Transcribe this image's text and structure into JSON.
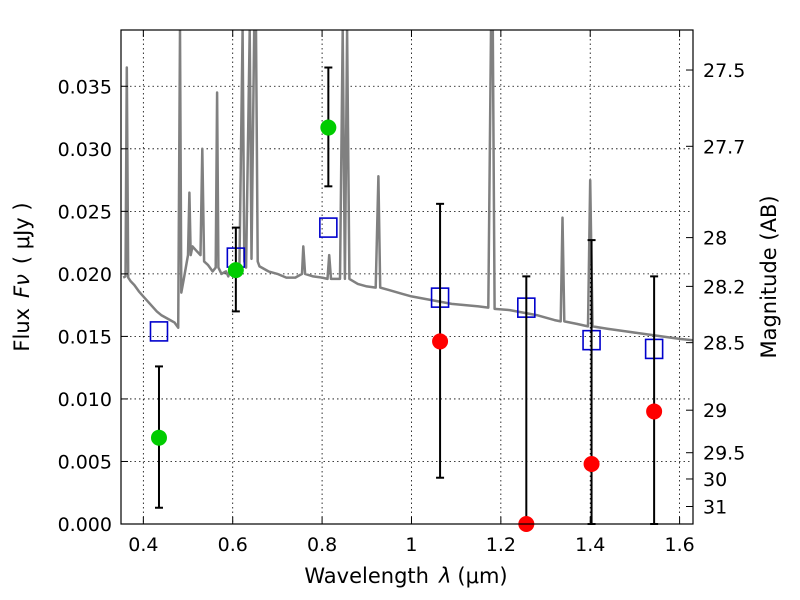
{
  "chart_data": {
    "type": "scatter",
    "title": "",
    "xlabel": "Wavelength",
    "xlabel_symbol": "λ",
    "xlabel_unit": "(μm)",
    "ylabel": "Flux",
    "ylabel_symbol": "Fν",
    "ylabel_unit": "( μJy )",
    "y2label": "Magnitude (AB)",
    "xlim": [
      0.35,
      1.63
    ],
    "ylim": [
      0.0,
      0.0395
    ],
    "grid": true,
    "x_ticks": [
      {
        "value": 0.4,
        "label": "0.4"
      },
      {
        "value": 0.6,
        "label": "0.6"
      },
      {
        "value": 0.8,
        "label": "0.8"
      },
      {
        "value": 1.0,
        "label": "1"
      },
      {
        "value": 1.2,
        "label": "1.2"
      },
      {
        "value": 1.4,
        "label": "1.4"
      },
      {
        "value": 1.6,
        "label": "1.6"
      }
    ],
    "y_ticks": [
      {
        "value": 0.0,
        "label": "0.000"
      },
      {
        "value": 0.005,
        "label": "0.005"
      },
      {
        "value": 0.01,
        "label": "0.010"
      },
      {
        "value": 0.015,
        "label": "0.015"
      },
      {
        "value": 0.02,
        "label": "0.020"
      },
      {
        "value": 0.025,
        "label": "0.025"
      },
      {
        "value": 0.03,
        "label": "0.030"
      },
      {
        "value": 0.035,
        "label": "0.035"
      }
    ],
    "y2_ticks": [
      {
        "flux": 0.0363,
        "label": "27.5"
      },
      {
        "flux": 0.0302,
        "label": "27.7"
      },
      {
        "flux": 0.0229,
        "label": "28"
      },
      {
        "flux": 0.019,
        "label": "28.2"
      },
      {
        "flux": 0.0145,
        "label": "28.5"
      },
      {
        "flux": 0.0091,
        "label": "29"
      },
      {
        "flux": 0.0057,
        "label": "29.5"
      },
      {
        "flux": 0.0036,
        "label": "30"
      },
      {
        "flux": 0.0014,
        "label": "31"
      }
    ],
    "colors": {
      "template": "#808080",
      "model": "#0000cc",
      "detected": "#00cc00",
      "upper": "#ff0000",
      "errorbar": "#000000"
    },
    "series": [
      {
        "kind": "line",
        "color_key": "template",
        "points": [
          [
            0.355,
            0.0197
          ],
          [
            0.36,
            0.0198
          ],
          [
            0.363,
            0.0365
          ],
          [
            0.366,
            0.0197
          ],
          [
            0.372,
            0.0194
          ],
          [
            0.38,
            0.0191
          ],
          [
            0.39,
            0.0186
          ],
          [
            0.4,
            0.0182
          ],
          [
            0.41,
            0.0178
          ],
          [
            0.42,
            0.0174
          ],
          [
            0.43,
            0.017
          ],
          [
            0.44,
            0.0167
          ],
          [
            0.45,
            0.0165
          ],
          [
            0.46,
            0.0163
          ],
          [
            0.47,
            0.0161
          ],
          [
            0.478,
            0.0157
          ],
          [
            0.482,
            0.0395
          ],
          [
            0.485,
            0.0185
          ],
          [
            0.49,
            0.0195
          ],
          [
            0.495,
            0.0205
          ],
          [
            0.5,
            0.0215
          ],
          [
            0.503,
            0.0265
          ],
          [
            0.506,
            0.0215
          ],
          [
            0.51,
            0.0222
          ],
          [
            0.52,
            0.0218
          ],
          [
            0.528,
            0.0215
          ],
          [
            0.532,
            0.03
          ],
          [
            0.536,
            0.021
          ],
          [
            0.545,
            0.0207
          ],
          [
            0.555,
            0.0202
          ],
          [
            0.562,
            0.0205
          ],
          [
            0.565,
            0.0345
          ],
          [
            0.568,
            0.0205
          ],
          [
            0.575,
            0.02
          ],
          [
            0.585,
            0.0202
          ],
          [
            0.59,
            0.0198
          ],
          [
            0.595,
            0.0205
          ],
          [
            0.6,
            0.0202
          ],
          [
            0.605,
            0.02
          ],
          [
            0.615,
            0.0205
          ],
          [
            0.622,
            0.0395
          ],
          [
            0.626,
            0.021
          ],
          [
            0.63,
            0.0205
          ],
          [
            0.638,
            0.0395
          ],
          [
            0.642,
            0.0212
          ],
          [
            0.648,
            0.0395
          ],
          [
            0.652,
            0.0395
          ],
          [
            0.656,
            0.021
          ],
          [
            0.66,
            0.0206
          ],
          [
            0.68,
            0.0202
          ],
          [
            0.7,
            0.02
          ],
          [
            0.72,
            0.0197
          ],
          [
            0.74,
            0.0197
          ],
          [
            0.755,
            0.02
          ],
          [
            0.758,
            0.0222
          ],
          [
            0.762,
            0.02
          ],
          [
            0.78,
            0.0198
          ],
          [
            0.8,
            0.0197
          ],
          [
            0.812,
            0.0196
          ],
          [
            0.816,
            0.0215
          ],
          [
            0.82,
            0.0196
          ],
          [
            0.84,
            0.0196
          ],
          [
            0.846,
            0.0395
          ],
          [
            0.851,
            0.0196
          ],
          [
            0.856,
            0.0395
          ],
          [
            0.861,
            0.0196
          ],
          [
            0.88,
            0.0192
          ],
          [
            0.9,
            0.019
          ],
          [
            0.92,
            0.0189
          ],
          [
            0.926,
            0.0278
          ],
          [
            0.93,
            0.0189
          ],
          [
            0.95,
            0.0187
          ],
          [
            0.98,
            0.0184
          ],
          [
            1.0,
            0.0182
          ],
          [
            1.03,
            0.018
          ],
          [
            1.06,
            0.0178
          ],
          [
            1.09,
            0.0176
          ],
          [
            1.12,
            0.0175
          ],
          [
            1.15,
            0.0174
          ],
          [
            1.172,
            0.0173
          ],
          [
            1.178,
            0.0395
          ],
          [
            1.182,
            0.0395
          ],
          [
            1.186,
            0.0172
          ],
          [
            1.22,
            0.0171
          ],
          [
            1.25,
            0.0169
          ],
          [
            1.28,
            0.0167
          ],
          [
            1.3,
            0.0165
          ],
          [
            1.32,
            0.0163
          ],
          [
            1.334,
            0.0162
          ],
          [
            1.338,
            0.0245
          ],
          [
            1.342,
            0.0162
          ],
          [
            1.37,
            0.016
          ],
          [
            1.395,
            0.0158
          ],
          [
            1.4,
            0.0275
          ],
          [
            1.405,
            0.0158
          ],
          [
            1.44,
            0.0156
          ],
          [
            1.48,
            0.0154
          ],
          [
            1.52,
            0.0152
          ],
          [
            1.56,
            0.015
          ],
          [
            1.6,
            0.0148
          ],
          [
            1.63,
            0.0147
          ]
        ]
      },
      {
        "kind": "model_squares",
        "color_key": "model",
        "points": [
          [
            0.435,
            0.0154
          ],
          [
            0.607,
            0.0213
          ],
          [
            0.814,
            0.0237
          ],
          [
            1.064,
            0.0181
          ],
          [
            1.257,
            0.0173
          ],
          [
            1.403,
            0.0147
          ],
          [
            1.543,
            0.014
          ]
        ]
      },
      {
        "kind": "detected_points",
        "color_key": "detected",
        "points": [
          {
            "x": 0.435,
            "y": 0.0069,
            "lo": 0.0013,
            "hi": 0.0126
          },
          {
            "x": 0.607,
            "y": 0.0203,
            "lo": 0.017,
            "hi": 0.0237
          },
          {
            "x": 0.814,
            "y": 0.0317,
            "lo": 0.027,
            "hi": 0.0365
          }
        ]
      },
      {
        "kind": "nondetected_points",
        "color_key": "upper",
        "points": [
          {
            "x": 1.064,
            "y": 0.0146,
            "lo": 0.0037,
            "hi": 0.0256
          },
          {
            "x": 1.257,
            "y": 0.0,
            "lo": 0.0,
            "hi": 0.0198
          },
          {
            "x": 1.403,
            "y": 0.0048,
            "lo": 0.0,
            "hi": 0.0227
          },
          {
            "x": 1.543,
            "y": 0.009,
            "lo": 0.0,
            "hi": 0.0198
          }
        ]
      }
    ]
  }
}
